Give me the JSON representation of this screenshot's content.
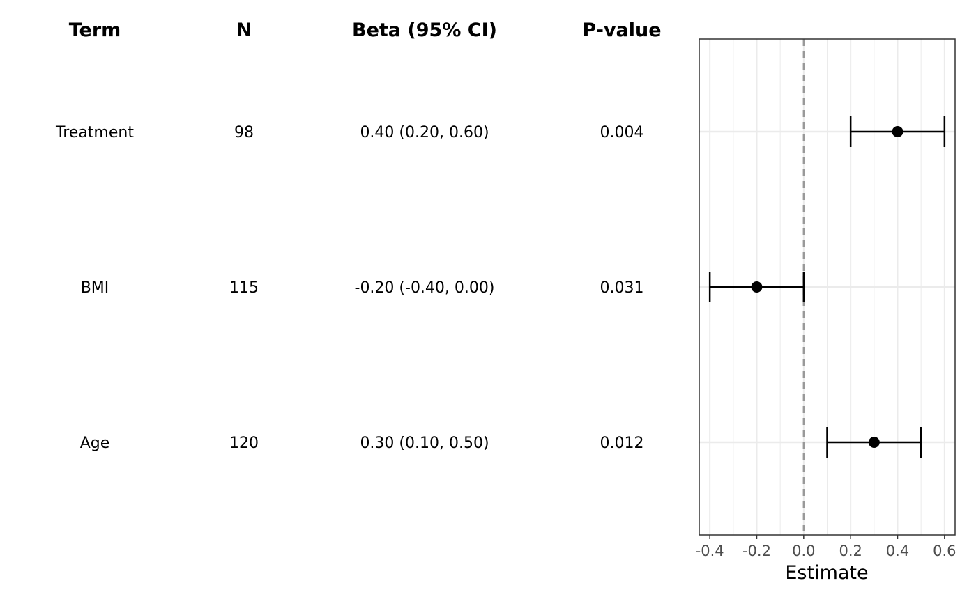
{
  "table": {
    "headers": [
      "Term",
      "N",
      "Beta (95% CI)",
      "P-value"
    ]
  },
  "chart_data": {
    "type": "forest",
    "categories": [
      "Treatment",
      "BMI",
      "Age"
    ],
    "n": [
      "98",
      "115",
      "120"
    ],
    "beta_ci_text": [
      "0.40 (0.20, 0.60)",
      "-0.20 (-0.40, 0.00)",
      "0.30 (0.10, 0.50)"
    ],
    "p_values": [
      "0.004",
      "0.031",
      "0.012"
    ],
    "estimates": [
      0.4,
      -0.2,
      0.3
    ],
    "ci_low": [
      0.2,
      -0.4,
      0.1
    ],
    "ci_high": [
      0.6,
      0.0,
      0.5
    ],
    "xlabel": "Estimate",
    "x_ticks": [
      -0.4,
      -0.2,
      0.0,
      0.2,
      0.4,
      0.6
    ],
    "x_tick_labels": [
      "-0.4",
      "-0.2",
      "0.0",
      "0.2",
      "0.4",
      "0.6"
    ],
    "xlim": [
      -0.445,
      0.645
    ],
    "reference_line": 0,
    "grid": true,
    "colors": {
      "point": "#000000",
      "reference": "#999999",
      "grid": "#ebebeb",
      "panel_border": "#333333",
      "tick_label": "#4d4d4d"
    }
  }
}
